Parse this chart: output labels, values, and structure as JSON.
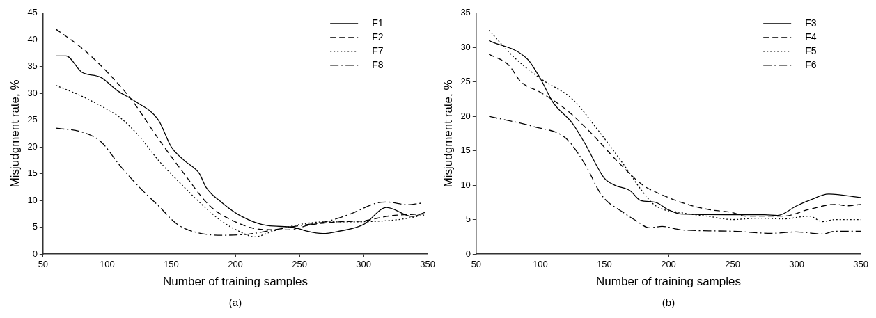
{
  "chart_data": [
    {
      "type": "line",
      "xlabel": "Number of training samples",
      "ylabel": "Misjudgment rate, %",
      "annotations": [
        "(a)"
      ],
      "xlim": [
        50,
        350
      ],
      "xticks": [
        50,
        100,
        150,
        200,
        250,
        300,
        350
      ],
      "ylim": [
        0,
        45
      ],
      "yticks": [
        0,
        5,
        10,
        15,
        20,
        25,
        30,
        35,
        40,
        45
      ],
      "grid": false,
      "legend": "top right",
      "marker": "none",
      "series": [
        {
          "name": "F1",
          "color": "#000000",
          "line_style": "solid",
          "x": [
            60,
            68,
            80,
            95,
            108,
            122,
            140,
            150,
            160,
            172,
            177,
            190,
            205,
            225,
            245,
            255,
            268,
            280,
            300,
            318,
            338,
            348
          ],
          "values": [
            37,
            37,
            34,
            33,
            30.5,
            28.5,
            25,
            20,
            17.5,
            15,
            12.5,
            9.5,
            7,
            5.3,
            5,
            4.3,
            3.8,
            4.2,
            5.5,
            8.7,
            7,
            7.8
          ]
        },
        {
          "name": "F2",
          "color": "#000000",
          "line_style": "dashed",
          "x": [
            60,
            80,
            100,
            120,
            140,
            160,
            180,
            200,
            220,
            240,
            260,
            280,
            300,
            320,
            348
          ],
          "values": [
            42,
            38.5,
            34,
            28.5,
            21.5,
            15,
            9,
            6,
            4.6,
            4.5,
            5.5,
            6,
            6.2,
            7.1,
            7.5
          ]
        },
        {
          "name": "F7",
          "color": "#000000",
          "line_style": "dotted",
          "x": [
            60,
            80,
            100,
            110,
            125,
            140,
            160,
            175,
            190,
            205,
            215,
            230,
            250,
            270,
            290,
            310,
            330,
            348
          ],
          "values": [
            31.5,
            29.5,
            27,
            25.5,
            22,
            17.5,
            12.5,
            9,
            6,
            4,
            3.2,
            4.3,
            5.5,
            6,
            6,
            6.1,
            6.5,
            7.3
          ]
        },
        {
          "name": "F8",
          "color": "#000000",
          "line_style": "dashdot",
          "x": [
            60,
            80,
            95,
            110,
            125,
            140,
            155,
            170,
            190,
            210,
            230,
            250,
            270,
            290,
            310,
            318,
            335,
            345
          ],
          "values": [
            23.5,
            22.8,
            21,
            16.5,
            12.5,
            9,
            5.5,
            4,
            3.5,
            3.7,
            4.5,
            5.3,
            6,
            7.5,
            9.5,
            9.7,
            9.2,
            9.5
          ]
        }
      ]
    },
    {
      "type": "line",
      "xlabel": "Number of training samples",
      "ylabel": "Misjudgment rate, %",
      "annotations": [
        "(b)"
      ],
      "xlim": [
        50,
        350
      ],
      "xticks": [
        50,
        100,
        150,
        200,
        250,
        300,
        350
      ],
      "ylim": [
        0,
        35
      ],
      "yticks": [
        0,
        5,
        10,
        15,
        20,
        25,
        30,
        35
      ],
      "grid": false,
      "legend": "top right",
      "marker": "none",
      "series": [
        {
          "name": "F3",
          "color": "#000000",
          "line_style": "solid",
          "x": [
            60,
            90,
            100,
            110,
            125,
            135,
            150,
            158,
            170,
            178,
            190,
            200,
            210,
            250,
            275,
            285,
            300,
            310,
            325,
            350
          ],
          "values": [
            31,
            28.3,
            25.5,
            22,
            19,
            16,
            11,
            10,
            9.2,
            7.8,
            7.5,
            6.4,
            5.8,
            5.7,
            5.7,
            5.6,
            7,
            7.8,
            8.7,
            8.2
          ]
        },
        {
          "name": "F4",
          "color": "#000000",
          "line_style": "dashed",
          "x": [
            60,
            75,
            85,
            100,
            120,
            140,
            160,
            180,
            190,
            210,
            230,
            250,
            260,
            270,
            290,
            310,
            330,
            340,
            350
          ],
          "values": [
            29,
            27.5,
            25,
            23.5,
            21,
            17.5,
            13.5,
            10,
            9,
            7.5,
            6.5,
            6,
            5.5,
            5.5,
            5.5,
            6.5,
            7.2,
            7,
            7.2
          ]
        },
        {
          "name": "F5",
          "color": "#000000",
          "line_style": "dotted",
          "x": [
            60,
            80,
            100,
            125,
            145,
            165,
            180,
            190,
            210,
            230,
            250,
            270,
            290,
            310,
            320,
            330,
            350
          ],
          "values": [
            32.5,
            28.5,
            25.5,
            22.5,
            18,
            13,
            9,
            7,
            6,
            5.5,
            5,
            5.2,
            5.1,
            5.5,
            4.7,
            5,
            5
          ]
        },
        {
          "name": "F6",
          "color": "#000000",
          "line_style": "dashdot",
          "x": [
            60,
            95,
            120,
            135,
            148,
            165,
            175,
            185,
            195,
            210,
            250,
            280,
            300,
            320,
            330,
            350
          ],
          "values": [
            20,
            18.5,
            16.8,
            13,
            8.5,
            6,
            4.8,
            3.8,
            4,
            3.5,
            3.3,
            3,
            3.2,
            2.9,
            3.3,
            3.3
          ]
        }
      ]
    }
  ]
}
